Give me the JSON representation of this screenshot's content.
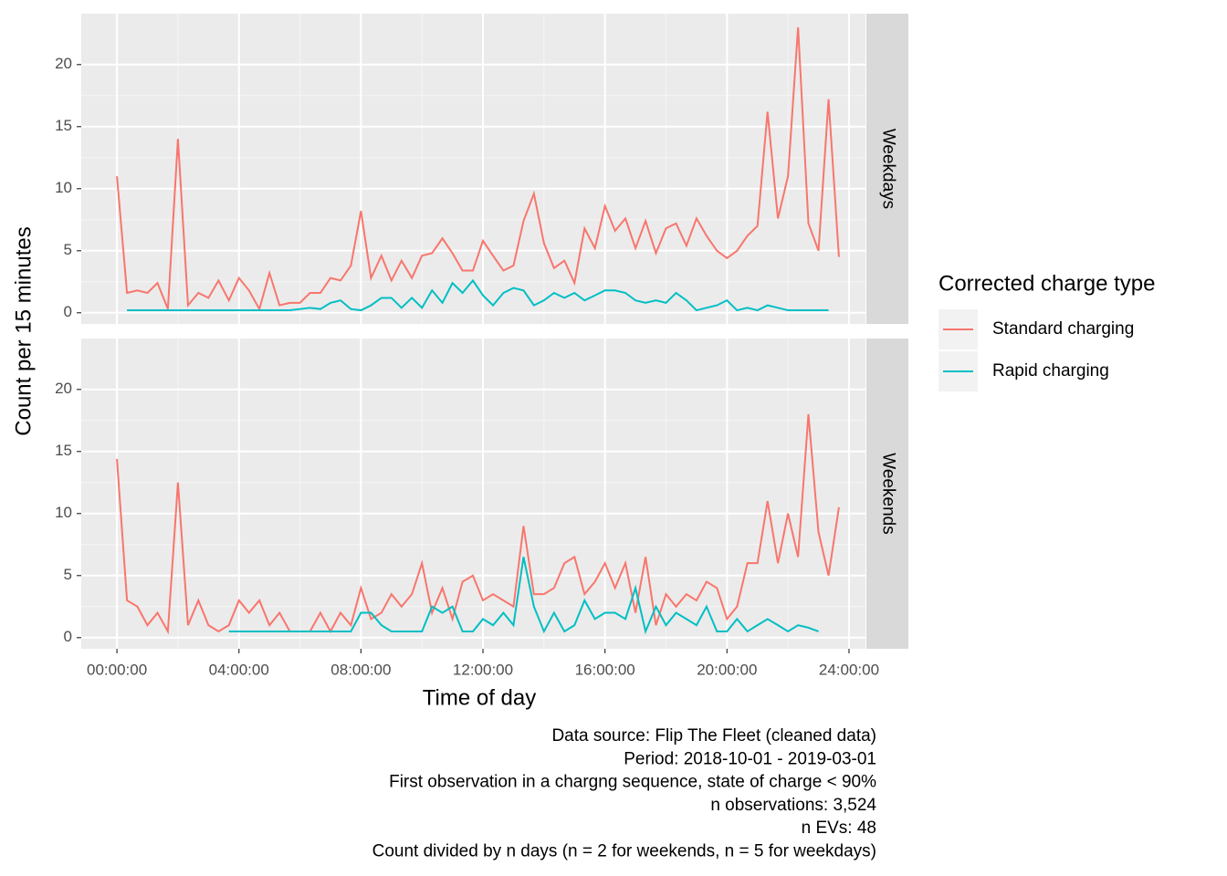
{
  "axis_labels": {
    "x": "Time of day",
    "y": "Count per 15 minutes"
  },
  "legend": {
    "title": "Corrected charge type",
    "position": "right"
  },
  "caption": [
    "Data source: Flip The Fleet (cleaned data)",
    "Period: 2018-10-01 - 2019-03-01",
    "First observation in a chargng sequence, state of charge < 90%",
    "n observations: 3,524",
    "n EVs: 48",
    "Count divided by n days (n = 2 for weekends, n = 5 for weekdays)"
  ],
  "chart_data": [
    {
      "type": "line",
      "facet": "Weekdays",
      "grid": true,
      "x": [
        0,
        0.33,
        0.67,
        1,
        1.33,
        1.67,
        2,
        2.33,
        2.67,
        3,
        3.33,
        3.67,
        4,
        4.33,
        4.67,
        5,
        5.33,
        5.67,
        6,
        6.33,
        6.67,
        7,
        7.33,
        7.67,
        8,
        8.33,
        8.67,
        9,
        9.33,
        9.67,
        10,
        10.33,
        10.67,
        11,
        11.33,
        11.67,
        12,
        12.33,
        12.67,
        13,
        13.33,
        13.67,
        14,
        14.33,
        14.67,
        15,
        15.33,
        15.67,
        16,
        16.33,
        16.67,
        17,
        17.33,
        17.67,
        18,
        18.33,
        18.67,
        19,
        19.33,
        19.67,
        20,
        20.33,
        20.67,
        21,
        21.33,
        21.67,
        22,
        22.33,
        22.67,
        23,
        23.33,
        23.67
      ],
      "series": [
        {
          "name": "Standard charging",
          "color": "#f8766d",
          "values": [
            11,
            1.6,
            1.8,
            1.6,
            2.4,
            0.3,
            14,
            0.6,
            1.6,
            1.2,
            2.6,
            1.0,
            2.8,
            1.8,
            0.3,
            3.2,
            0.6,
            0.8,
            0.8,
            1.6,
            1.6,
            2.8,
            2.6,
            3.8,
            8.2,
            2.8,
            4.6,
            2.6,
            4.2,
            2.8,
            4.6,
            4.8,
            6.0,
            4.8,
            3.4,
            3.4,
            5.8,
            4.6,
            3.4,
            3.8,
            7.4,
            9.6,
            5.6,
            3.6,
            4.2,
            2.4,
            6.8,
            5.2,
            8.6,
            6.6,
            7.6,
            5.2,
            7.4,
            4.8,
            6.8,
            7.2,
            5.4,
            7.6,
            6.2,
            5.0,
            4.4,
            5.0,
            6.2,
            7.0,
            16.2,
            7.6,
            11,
            23,
            7.2,
            5.0,
            17.2,
            4.5
          ]
        },
        {
          "name": "Rapid charging",
          "color": "#00bfc4",
          "values": [
            null,
            0.2,
            0.2,
            0.2,
            0.2,
            0.2,
            0.2,
            0.2,
            0.2,
            0.2,
            0.2,
            0.2,
            0.2,
            0.2,
            0.2,
            0.2,
            0.2,
            0.2,
            0.3,
            0.4,
            0.3,
            0.8,
            1.0,
            0.3,
            0.2,
            0.6,
            1.2,
            1.2,
            0.4,
            1.2,
            0.4,
            1.8,
            0.8,
            2.4,
            1.6,
            2.6,
            1.4,
            0.6,
            1.6,
            2.0,
            1.8,
            0.6,
            1.0,
            1.6,
            1.2,
            1.6,
            1.0,
            1.4,
            1.8,
            1.8,
            1.6,
            1.0,
            0.8,
            1.0,
            0.8,
            1.6,
            1.0,
            0.2,
            0.4,
            0.6,
            1.0,
            0.2,
            0.4,
            0.2,
            0.6,
            0.4,
            0.2,
            0.2,
            0.2,
            0.2,
            0.2,
            null
          ]
        }
      ],
      "ylim": [
        -0.9,
        24.1
      ],
      "yticks": [
        0,
        5,
        10,
        15,
        20
      ]
    },
    {
      "type": "line",
      "facet": "Weekends",
      "grid": true,
      "x": [
        0,
        0.33,
        0.67,
        1,
        1.33,
        1.67,
        2,
        2.33,
        2.67,
        3,
        3.33,
        3.67,
        4,
        4.33,
        4.67,
        5,
        5.33,
        5.67,
        6,
        6.33,
        6.67,
        7,
        7.33,
        7.67,
        8,
        8.33,
        8.67,
        9,
        9.33,
        9.67,
        10,
        10.33,
        10.67,
        11,
        11.33,
        11.67,
        12,
        12.33,
        12.67,
        13,
        13.33,
        13.67,
        14,
        14.33,
        14.67,
        15,
        15.33,
        15.67,
        16,
        16.33,
        16.67,
        17,
        17.33,
        17.67,
        18,
        18.33,
        18.67,
        19,
        19.33,
        19.67,
        20,
        20.33,
        20.67,
        21,
        21.33,
        21.67,
        22,
        22.33,
        22.67,
        23,
        23.33,
        23.67
      ],
      "series": [
        {
          "name": "Standard charging",
          "color": "#f8766d",
          "values": [
            14.4,
            3.0,
            2.5,
            1.0,
            2.0,
            0.5,
            12.5,
            1.0,
            3.0,
            1.0,
            0.5,
            1.0,
            3.0,
            2.0,
            3.0,
            1.0,
            2.0,
            0.5,
            0.5,
            0.5,
            2.0,
            0.5,
            2.0,
            1.0,
            4.0,
            1.5,
            2.0,
            3.5,
            2.5,
            3.5,
            6.0,
            2.0,
            4.0,
            1.5,
            4.5,
            5.0,
            3.0,
            3.5,
            3.0,
            2.5,
            9.0,
            3.5,
            3.5,
            4.0,
            6.0,
            6.5,
            3.5,
            4.5,
            6.0,
            4.0,
            6.0,
            2.0,
            6.5,
            1.0,
            3.5,
            2.5,
            3.5,
            3.0,
            4.5,
            4.0,
            1.5,
            2.5,
            6.0,
            6.0,
            11,
            6.0,
            10,
            6.5,
            18,
            8.5,
            5.0,
            10.5
          ]
        },
        {
          "name": "Rapid charging",
          "color": "#00bfc4",
          "values": [
            null,
            null,
            null,
            null,
            null,
            null,
            null,
            null,
            null,
            null,
            null,
            0.5,
            0.5,
            0.5,
            0.5,
            0.5,
            0.5,
            0.5,
            0.5,
            0.5,
            0.5,
            0.5,
            0.5,
            0.5,
            2.0,
            2.0,
            1.0,
            0.5,
            0.5,
            0.5,
            0.5,
            2.5,
            2.0,
            2.5,
            0.5,
            0.5,
            1.5,
            1.0,
            2.0,
            1.0,
            6.5,
            2.5,
            0.5,
            2.0,
            0.5,
            1.0,
            3.0,
            1.5,
            2.0,
            2.0,
            1.5,
            4.0,
            0.5,
            2.5,
            1.0,
            2.0,
            1.5,
            1.0,
            2.5,
            0.5,
            0.5,
            1.5,
            0.5,
            1.0,
            1.5,
            1.0,
            0.5,
            1.0,
            0.8,
            0.5,
            null,
            null
          ]
        }
      ],
      "ylim": [
        -0.9,
        24.1
      ],
      "yticks": [
        0,
        5,
        10,
        15,
        20
      ],
      "xlim": [
        -1.17,
        24.54
      ],
      "xticks": [
        {
          "value": 0,
          "label": "00:00:00"
        },
        {
          "value": 4,
          "label": "04:00:00"
        },
        {
          "value": 8,
          "label": "08:00:00"
        },
        {
          "value": 12,
          "label": "12:00:00"
        },
        {
          "value": 16,
          "label": "16:00:00"
        },
        {
          "value": 20,
          "label": "20:00:00"
        },
        {
          "value": 24,
          "label": "24:00:00"
        }
      ]
    }
  ]
}
